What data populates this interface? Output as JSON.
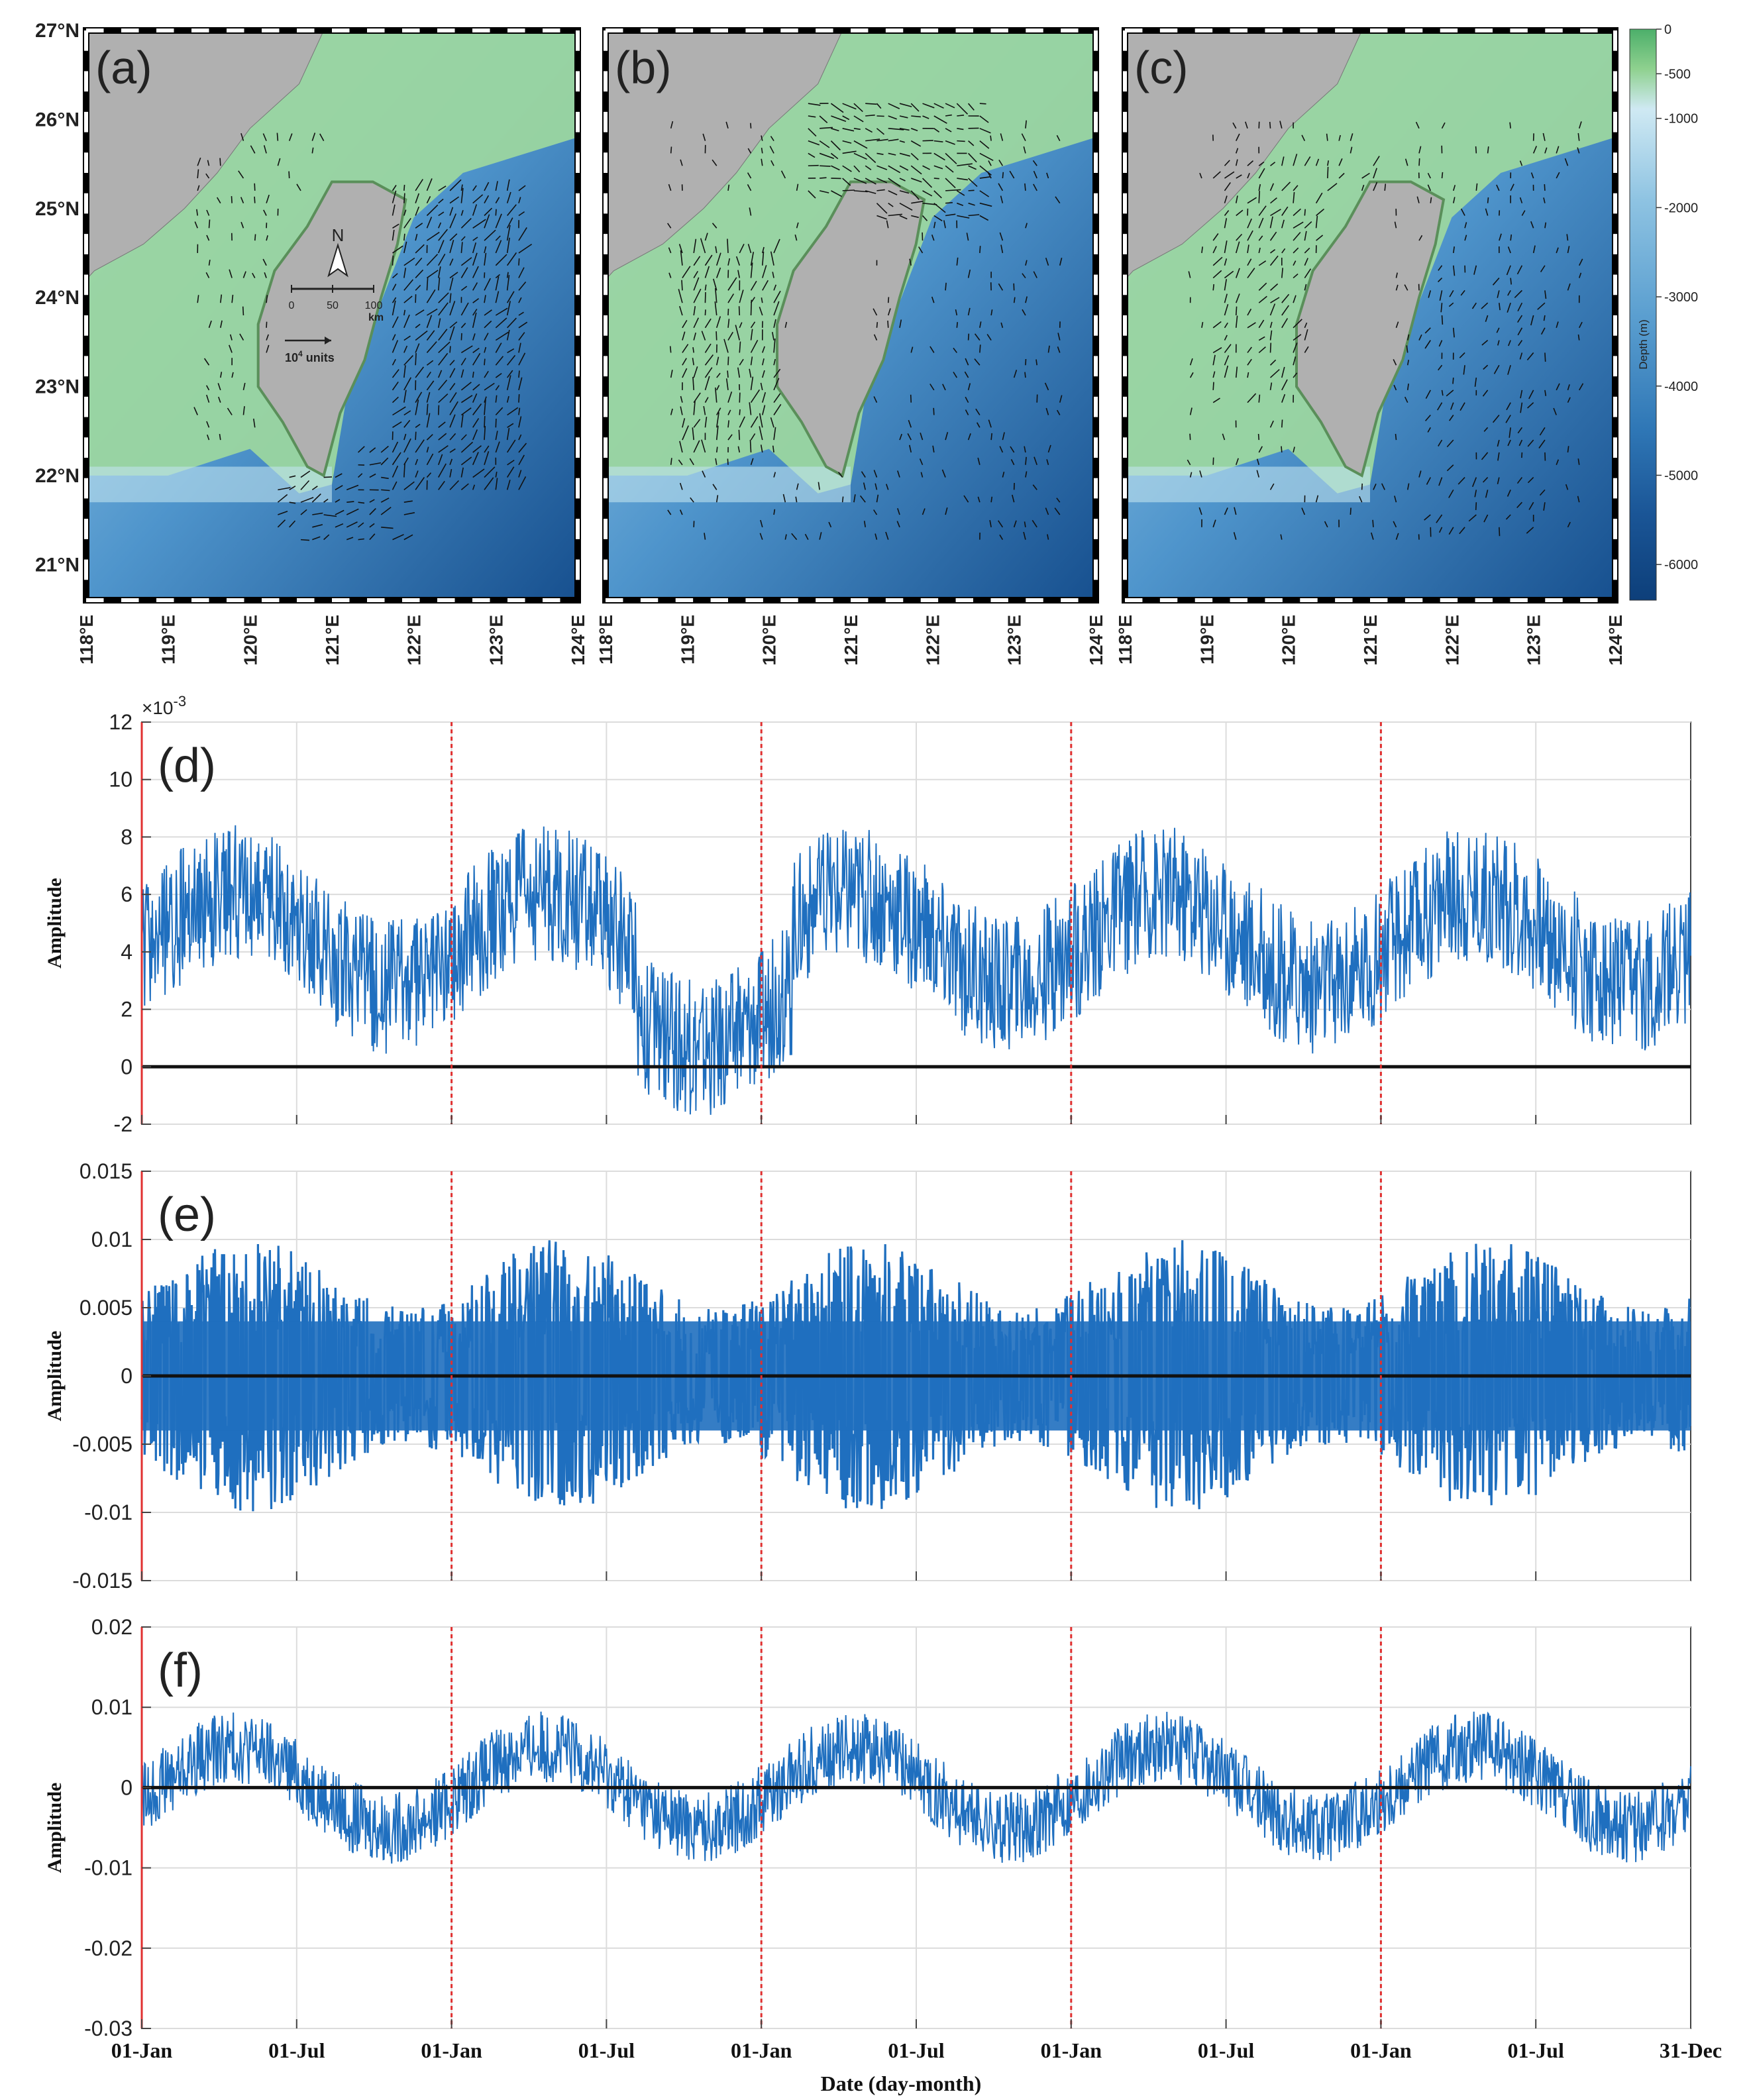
{
  "maps": {
    "lat_ticks": [
      {
        "value": 27,
        "label": "27°N"
      },
      {
        "value": 26,
        "label": "26°N"
      },
      {
        "value": 25,
        "label": "25°N"
      },
      {
        "value": 24,
        "label": "24°N"
      },
      {
        "value": 23,
        "label": "23°N"
      },
      {
        "value": 22,
        "label": "22°N"
      },
      {
        "value": 21,
        "label": "21°N"
      }
    ],
    "lon_ticks": [
      {
        "value": 118,
        "label": "118°E"
      },
      {
        "value": 119,
        "label": "119°E"
      },
      {
        "value": 120,
        "label": "120°E"
      },
      {
        "value": 121,
        "label": "121°E"
      },
      {
        "value": 122,
        "label": "122°E"
      },
      {
        "value": 123,
        "label": "123°E"
      },
      {
        "value": 124,
        "label": "124°E"
      }
    ],
    "lon_range": [
      118,
      124
    ],
    "lat_range": [
      20.6,
      27
    ],
    "panels": [
      {
        "label": "(a)",
        "vector_region": "taiwan-east-and-strait"
      },
      {
        "label": "(b)",
        "vector_region": "strait-north-and-southwest"
      },
      {
        "label": "(c)",
        "vector_region": "strait-central-and-east"
      }
    ],
    "inset": {
      "north_label": "N",
      "scale_ticks": [
        "0",
        "50",
        "100"
      ],
      "scale_unit": "km",
      "vector_label": "10",
      "vector_exp": "4",
      "vector_unit": " units"
    },
    "colorbar": {
      "title": "Depth (m)",
      "ticks": [
        "0",
        "-500",
        "-1000",
        "-2000",
        "-3000",
        "-4000",
        "-5000",
        "-6000"
      ],
      "colors": {
        "land": "#b0b0b0",
        "shelf": "#8fd18f",
        "deep": "#0f4a8a",
        "mid": "#6aaed6"
      }
    }
  },
  "chart_data": [
    {
      "type": "line",
      "panel_label": "(d)",
      "ylabel": "Amplitude",
      "ylim": [
        -2,
        12
      ],
      "yticks": [
        "12",
        "10",
        "8",
        "6",
        "4",
        "2",
        "0",
        "-2"
      ],
      "ytick_values": [
        12,
        10,
        8,
        6,
        4,
        2,
        0,
        -2
      ],
      "exponent_base": "×10",
      "exponent_power": "-3",
      "series": [
        {
          "mean_annual_cycle": [
            4.2,
            5.5,
            4.8,
            3.0
          ],
          "noise": 2.2
        }
      ],
      "zero_line": true,
      "grid": true,
      "year_boundaries": [
        "01-Jan",
        "01-Jan",
        "01-Jan",
        "01-Jan"
      ]
    },
    {
      "type": "line",
      "panel_label": "(e)",
      "ylabel": "Amplitude",
      "ylim": [
        -0.015,
        0.015
      ],
      "yticks": [
        "0.015",
        "0.01",
        "0.005",
        "0",
        "-0.005",
        "-0.01",
        "-0.015"
      ],
      "ytick_values": [
        0.015,
        0.01,
        0.005,
        0,
        -0.005,
        -0.01,
        -0.015
      ],
      "envelope": [
        0.007,
        0.011
      ],
      "zero_line": true,
      "grid": true
    },
    {
      "type": "line",
      "panel_label": "(f)",
      "ylabel": "Amplitude",
      "ylim": [
        -0.03,
        0.02
      ],
      "yticks": [
        "0.02",
        "0.01",
        "0",
        "-0.01",
        "-0.02",
        "-0.03"
      ],
      "ytick_values": [
        0.02,
        0.01,
        0,
        -0.01,
        -0.02,
        -0.03
      ],
      "seasonal_amplitude": 0.005,
      "noise": 0.0045,
      "zero_line": true,
      "grid": true
    }
  ],
  "time_axis": {
    "xlabel": "Date (day-month)",
    "ticks": [
      "01-Jan",
      "01-Jul",
      "01-Jan",
      "01-Jul",
      "01-Jan",
      "01-Jul",
      "01-Jan",
      "01-Jul",
      "01-Jan",
      "01-Jul",
      "31-Dec"
    ],
    "years": 5,
    "boundary_color": "#e03030",
    "line_color": "#1f6fbf"
  }
}
